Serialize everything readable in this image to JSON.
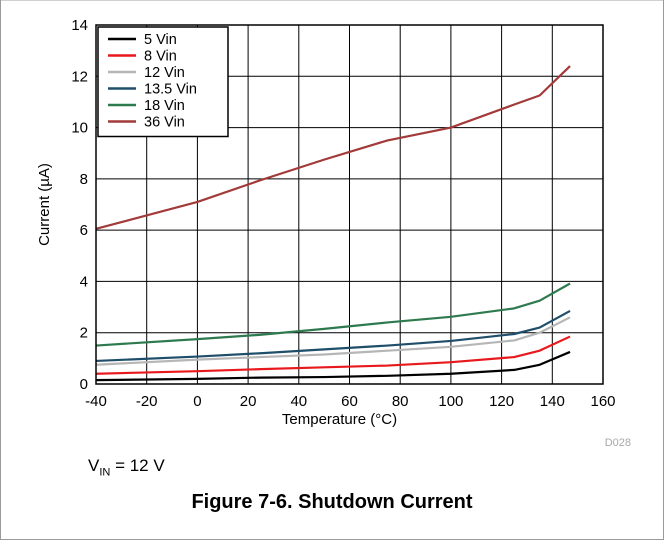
{
  "chart_data": {
    "type": "line",
    "xlabel": "Temperature (°C)",
    "ylabel": "Current (µA)",
    "xlim": [
      -40,
      160
    ],
    "ylim": [
      0,
      14
    ],
    "xticks": [
      -40,
      -20,
      0,
      20,
      40,
      60,
      80,
      100,
      120,
      140,
      160
    ],
    "yticks": [
      0,
      2,
      4,
      6,
      8,
      10,
      12,
      14
    ],
    "grid": true,
    "legend_position": "top-left",
    "x": [
      -40,
      0,
      25,
      50,
      75,
      100,
      125,
      135,
      147
    ],
    "series": [
      {
        "name": "5 Vin",
        "color": "#000000",
        "values": [
          0.15,
          0.2,
          0.25,
          0.27,
          0.32,
          0.4,
          0.55,
          0.75,
          1.25
        ]
      },
      {
        "name": "8 Vin",
        "color": "#e8191c",
        "values": [
          0.4,
          0.5,
          0.58,
          0.65,
          0.72,
          0.85,
          1.05,
          1.3,
          1.85
        ]
      },
      {
        "name": "12 Vin",
        "color": "#b6b6b6",
        "values": [
          0.75,
          0.95,
          1.05,
          1.15,
          1.3,
          1.45,
          1.7,
          2.0,
          2.6
        ]
      },
      {
        "name": "13.5 Vin",
        "color": "#1f4e6b",
        "values": [
          0.9,
          1.07,
          1.2,
          1.35,
          1.5,
          1.68,
          1.95,
          2.2,
          2.85
        ]
      },
      {
        "name": "18 Vin",
        "color": "#2e7a4f",
        "values": [
          1.5,
          1.75,
          1.92,
          2.15,
          2.4,
          2.62,
          2.95,
          3.25,
          3.92
        ]
      },
      {
        "name": "36 Vin",
        "color": "#a33a3a",
        "values": [
          6.05,
          7.1,
          7.95,
          8.75,
          9.5,
          10.0,
          10.9,
          11.25,
          12.4
        ]
      }
    ]
  },
  "figure_code": "D028",
  "condition": {
    "prefix": "V",
    "subscript": "IN",
    "suffix": " = 12 V"
  },
  "caption": "Figure 7-6. Shutdown Current"
}
